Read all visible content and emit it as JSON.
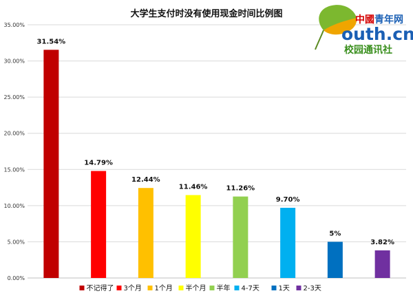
{
  "chart_data": {
    "type": "bar",
    "title": "大学生支付时没有使用现金时间比例图",
    "categories": [
      "不记得了",
      "3个月",
      "1个月",
      "半个月",
      "半年",
      "4-7天",
      "1天",
      "2-3天"
    ],
    "values": [
      31.54,
      14.79,
      12.44,
      11.46,
      11.26,
      9.7,
      5,
      3.82
    ],
    "data_labels": [
      "31.54%",
      "14.79%",
      "12.44%",
      "11.46%",
      "11.26%",
      "9.70%",
      "5%",
      "3.82%"
    ],
    "colors": [
      "#c00000",
      "#ff0000",
      "#ffc000",
      "#ffff00",
      "#92d050",
      "#00b0f0",
      "#0070c0",
      "#7030a0"
    ],
    "ylim": [
      0,
      35
    ],
    "yticks": [
      "0.00%",
      "5.00%",
      "10.00%",
      "15.00%",
      "20.00%",
      "25.00%",
      "30.00%",
      "35.00%"
    ],
    "grid": true,
    "legend": "bottom",
    "xlabel": "",
    "ylabel": ""
  },
  "logo": {
    "line1_red": "中國",
    "line1_rest": "青年网",
    "line2": "outh.cn",
    "line3": "校园通讯社"
  }
}
